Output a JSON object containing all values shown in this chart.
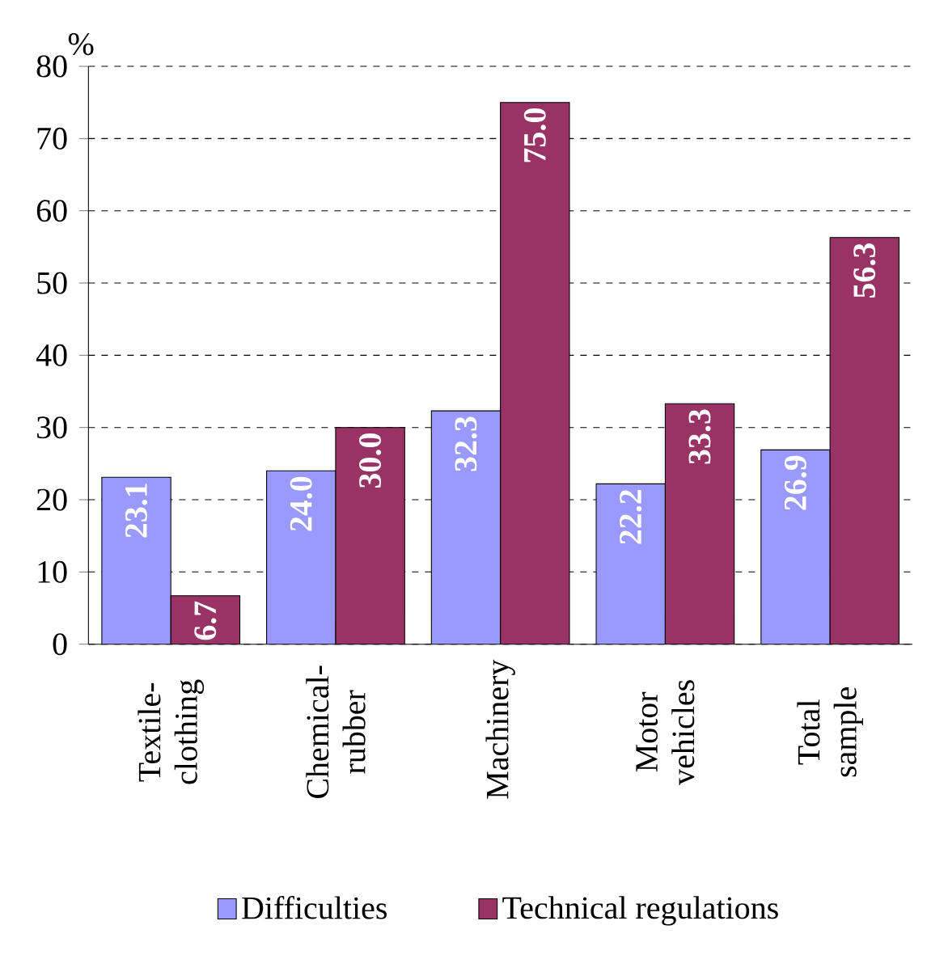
{
  "chart_data": {
    "type": "bar",
    "ylabel": "%",
    "categories": [
      "Textile-clothing",
      "Chemical-rubber",
      "Machinery",
      "Motor vehicles",
      "Total sample"
    ],
    "series": [
      {
        "name": "Difficulties",
        "color": "#9999ff",
        "values": [
          23.1,
          24.0,
          32.3,
          22.2,
          26.9
        ],
        "value_labels": [
          "23.1",
          "24.0",
          "32.3",
          "22.2",
          "26.9"
        ]
      },
      {
        "name": "Technical regulations",
        "color": "#993366",
        "values": [
          6.7,
          30.0,
          75.0,
          33.3,
          56.3
        ],
        "value_labels": [
          "6.7",
          "30.0",
          "75.0",
          "33.3",
          "56.3"
        ]
      }
    ],
    "ylim": [
      0,
      80
    ],
    "yticks": [
      0,
      10,
      20,
      30,
      40,
      50,
      60,
      70,
      80
    ],
    "grid": "y",
    "legend": "bottom"
  }
}
